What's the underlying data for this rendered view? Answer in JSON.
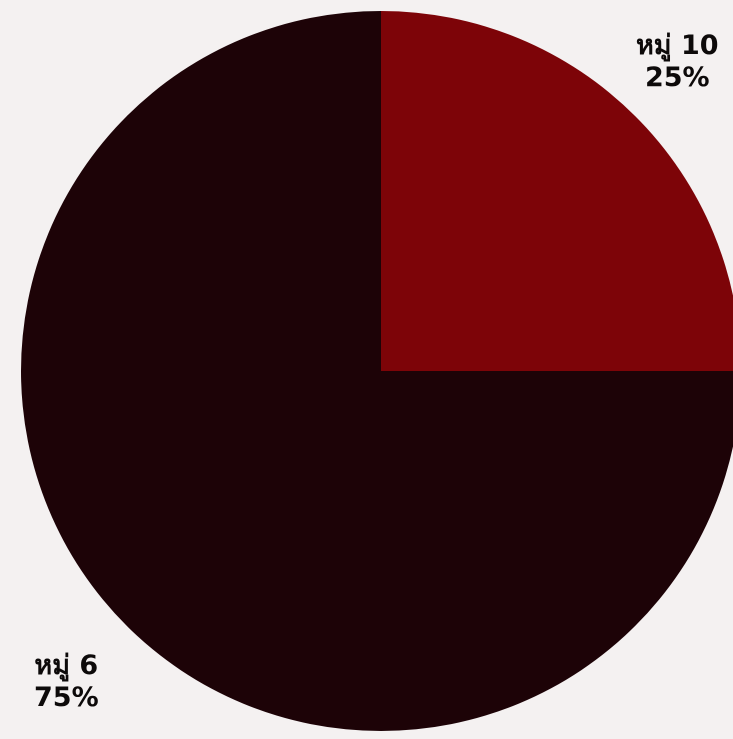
{
  "chart_data": {
    "type": "pie",
    "slices": [
      {
        "label": "หมู่ 10",
        "value": 25,
        "value_label": "25%",
        "color": "#7d0408"
      },
      {
        "label": "หมู่ 6",
        "value": 75,
        "value_label": "75%",
        "color": "#1d0307"
      }
    ],
    "title": "",
    "legend": "none"
  }
}
